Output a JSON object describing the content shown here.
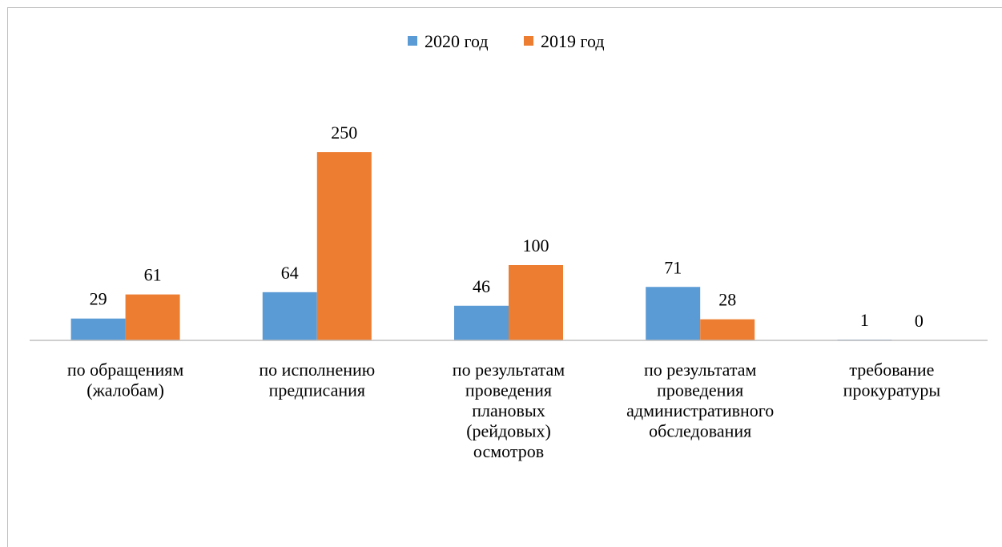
{
  "chart_data": {
    "type": "bar",
    "title": "",
    "xlabel": "",
    "ylabel": "",
    "categories": [
      [
        "по обращениям",
        "(жалобам)"
      ],
      [
        "по исполнению",
        "предписания"
      ],
      [
        "по результатам",
        "проведения",
        "плановых",
        "(рейдовых)",
        "осмотров"
      ],
      [
        "по результатам",
        "проведения",
        "административного",
        "обследования"
      ],
      [
        "требование",
        "прокуратуры"
      ]
    ],
    "series": [
      {
        "name": "2020 год",
        "color": "#5b9bd5",
        "values": [
          29,
          64,
          46,
          71,
          1
        ]
      },
      {
        "name": "2019 год",
        "color": "#ed7d31",
        "values": [
          61,
          250,
          100,
          28,
          0
        ]
      }
    ],
    "ylim": [
      0,
      250
    ],
    "grid": false,
    "legend": "top-center"
  }
}
